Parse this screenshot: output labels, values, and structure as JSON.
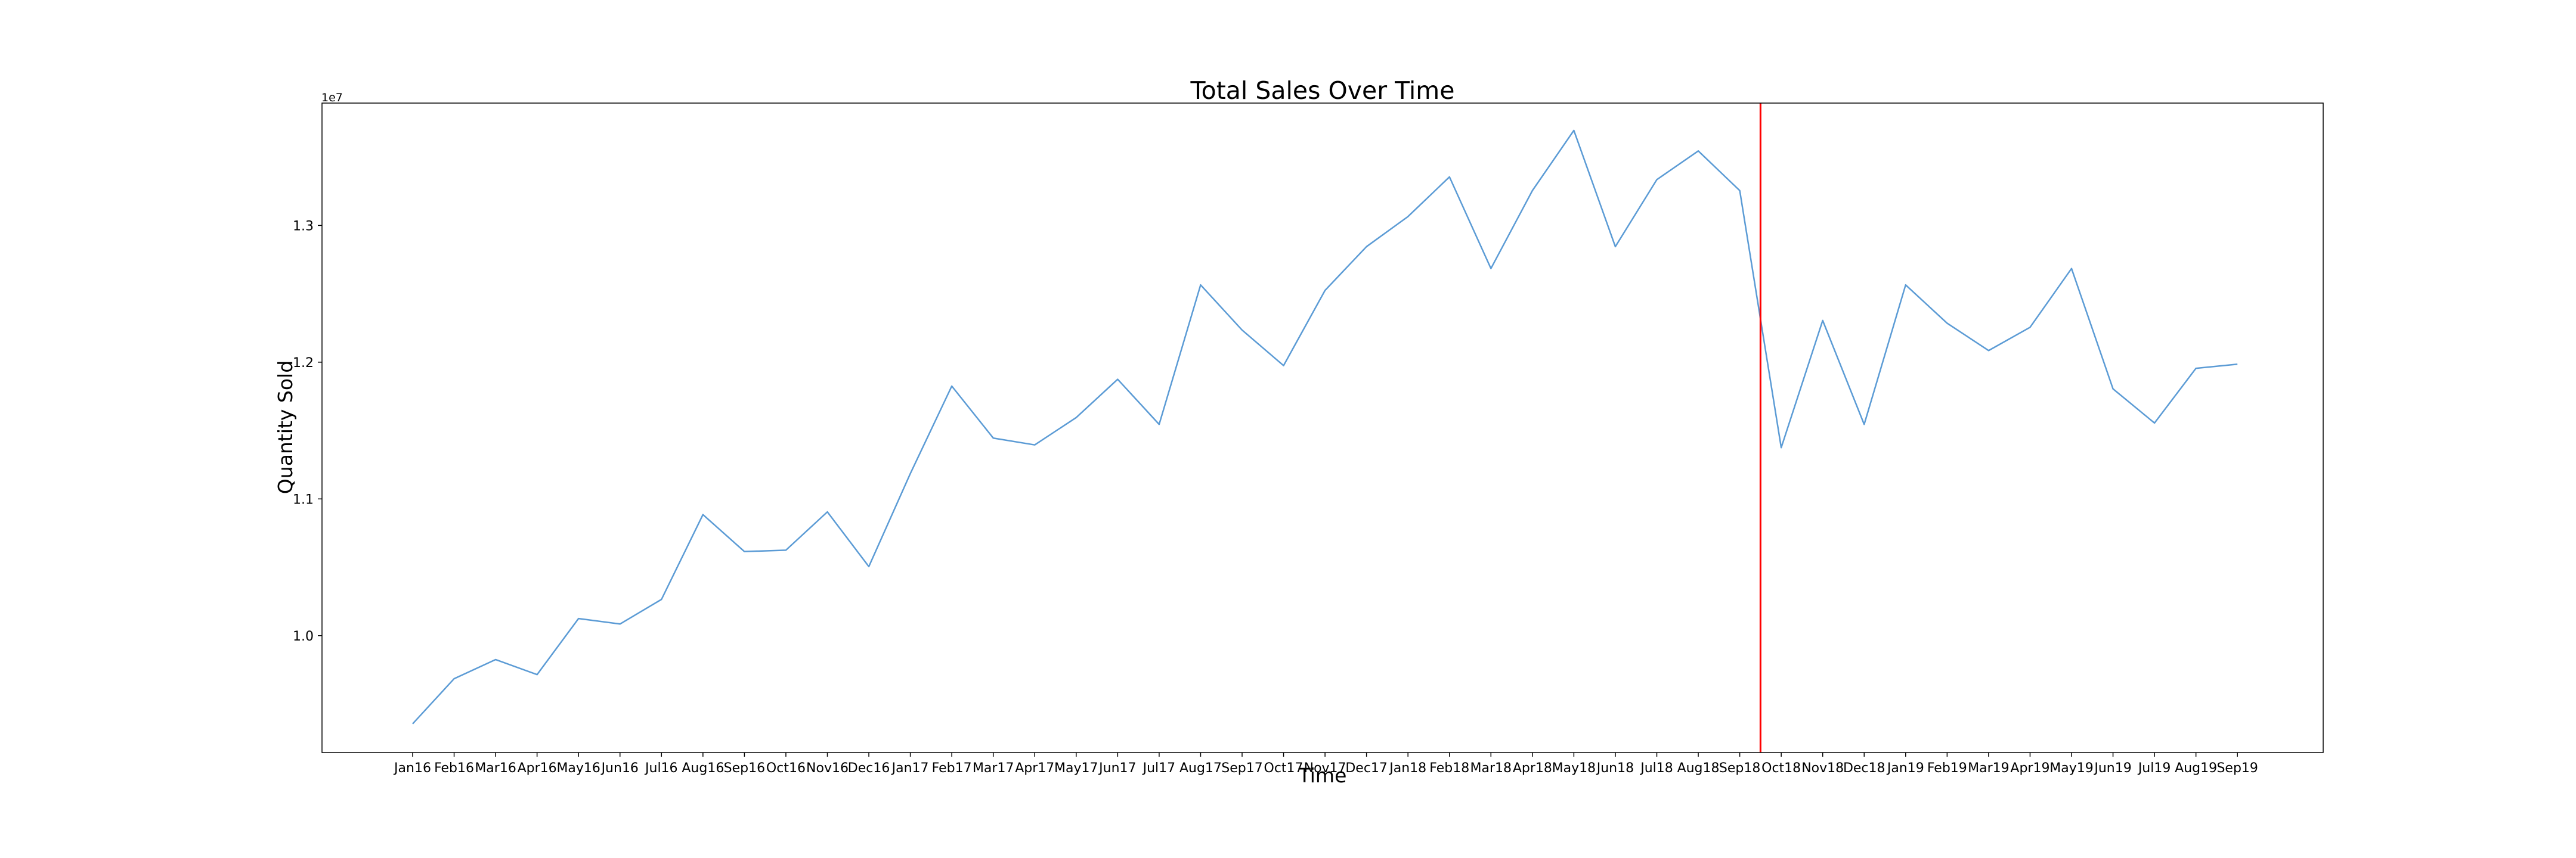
{
  "chart_data": {
    "type": "line",
    "title": "Total Sales Over Time",
    "xlabel": "Time",
    "ylabel": "Quantity Sold",
    "y_offset_label": "1e7",
    "y_tick_values": [
      1.0,
      1.1,
      1.2,
      1.3
    ],
    "y_tick_labels": [
      "1.0",
      "1.1",
      "1.2",
      "1.3"
    ],
    "ylim": [
      0.9145,
      1.3895
    ],
    "grid": false,
    "categories": [
      "Jan16",
      "Feb16",
      "Mar16",
      "Apr16",
      "May16",
      "Jun16",
      "Jul16",
      "Aug16",
      "Sep16",
      "Oct16",
      "Nov16",
      "Dec16",
      "Jan17",
      "Feb17",
      "Mar17",
      "Apr17",
      "May17",
      "Jun17",
      "Jul17",
      "Aug17",
      "Sep17",
      "Oct17",
      "Nov17",
      "Dec17",
      "Jan18",
      "Feb18",
      "Mar18",
      "Apr18",
      "May18",
      "Jun18",
      "Jul18",
      "Aug18",
      "Sep18",
      "Oct18",
      "Nov18",
      "Dec18",
      "Jan19",
      "Feb19",
      "Mar19",
      "Apr19",
      "May19",
      "Jun19",
      "Jul19",
      "Aug19",
      "Sep19"
    ],
    "series": [
      {
        "color": "#5b9bd5",
        "values": [
          0.9355,
          0.9685,
          0.9825,
          0.9715,
          1.0125,
          1.0085,
          1.0265,
          1.0885,
          1.0615,
          1.0625,
          1.0905,
          1.0505,
          1.1185,
          1.1825,
          1.1445,
          1.1395,
          1.1595,
          1.1875,
          1.1545,
          1.2565,
          1.2235,
          1.1975,
          1.2525,
          1.2845,
          1.3065,
          1.3355,
          1.2685,
          1.3255,
          1.3695,
          1.2845,
          1.3335,
          1.3545,
          1.3255,
          1.1375,
          1.2305,
          1.1545,
          1.2565,
          1.2285,
          1.2085,
          1.2255,
          1.2685,
          1.1805,
          1.1555,
          1.1955,
          1.1985
        ]
      }
    ],
    "vertical_marker": {
      "between_categories": [
        "Sep18",
        "Oct18"
      ],
      "color": "#ff0000"
    }
  }
}
